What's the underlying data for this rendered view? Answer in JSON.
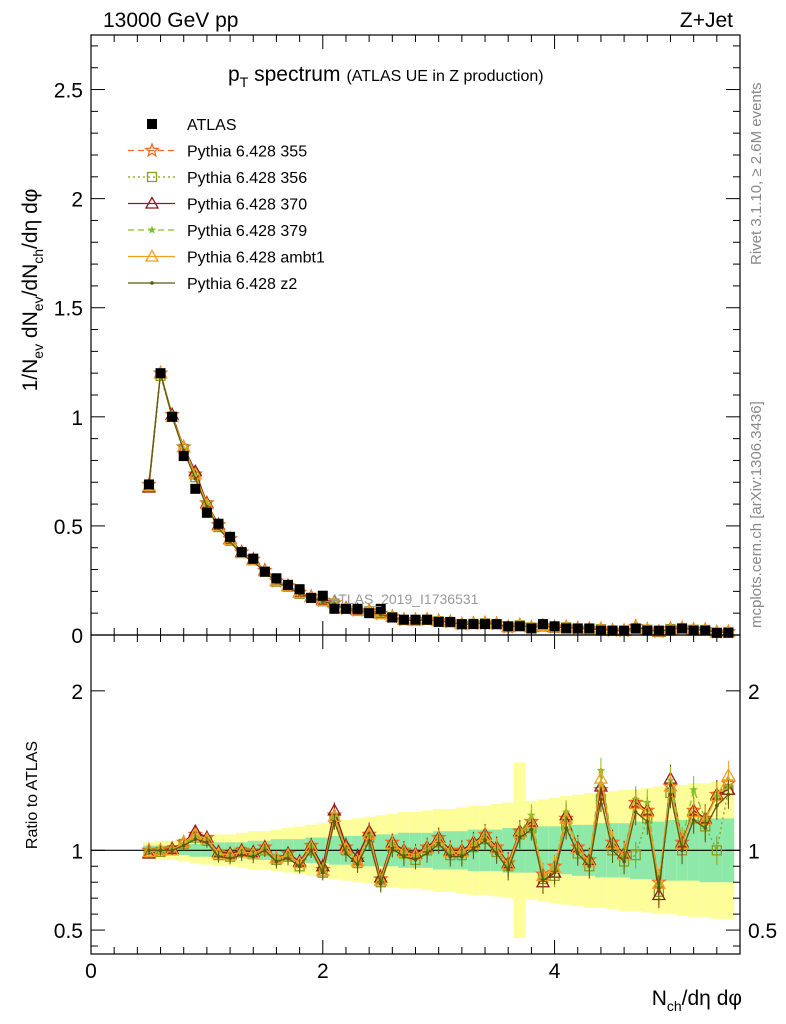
{
  "header": {
    "energy_label": "13000 GeV pp",
    "process_label": "Z+Jet"
  },
  "side_labels": {
    "rivet": "Rivet 3.1.10, ≥ 2.6M events",
    "mcplots": "mcplots.cern.ch [arXiv:1306.3436]"
  },
  "watermark": "ATLAS_2019_I1736531",
  "chart_data": [
    {
      "type": "line",
      "panel": "main",
      "title_main": "p",
      "title_sub": "T",
      "title_rest": " spectrum",
      "title_paren": "(ATLAS UE in Z production)",
      "ylabel": "1/N_ev dN_ev/dN_ch/dη dφ",
      "ylabel_parts": {
        "a": "1/N",
        "a_sub": "ev",
        "b": " dN",
        "b_sub": "ev",
        "c": "/dN",
        "c_sub": "ch",
        "d": "/dη dφ"
      },
      "xlim": [
        0,
        5.6
      ],
      "ylim": [
        0,
        2.75
      ],
      "yticks": [
        0,
        0.5,
        1,
        1.5,
        2,
        2.5
      ],
      "ytick_labels": [
        "0",
        "0.5",
        "1",
        "1.5",
        "2",
        "2.5"
      ],
      "legend_position": "top-left",
      "x": [
        0.5,
        0.6,
        0.7,
        0.8,
        0.9,
        1.0,
        1.1,
        1.2,
        1.3,
        1.4,
        1.5,
        1.6,
        1.7,
        1.8,
        1.9,
        2.0,
        2.1,
        2.2,
        2.3,
        2.4,
        2.5,
        2.6,
        2.7,
        2.8,
        2.9,
        3.0,
        3.1,
        3.2,
        3.3,
        3.4,
        3.5,
        3.6,
        3.7,
        3.8,
        3.9,
        4.0,
        4.1,
        4.2,
        4.3,
        4.4,
        4.5,
        4.6,
        4.7,
        4.8,
        4.9,
        5.0,
        5.1,
        5.2,
        5.3,
        5.4,
        5.5
      ],
      "data": [
        0.69,
        1.2,
        1.0,
        0.82,
        0.67,
        0.56,
        0.51,
        0.45,
        0.38,
        0.35,
        0.29,
        0.26,
        0.23,
        0.21,
        0.17,
        0.18,
        0.12,
        0.12,
        0.12,
        0.1,
        0.12,
        0.08,
        0.07,
        0.07,
        0.07,
        0.06,
        0.06,
        0.05,
        0.05,
        0.05,
        0.05,
        0.04,
        0.04,
        0.03,
        0.05,
        0.04,
        0.03,
        0.03,
        0.03,
        0.02,
        0.02,
        0.02,
        0.03,
        0.02,
        0.02,
        0.02,
        0.03,
        0.02,
        0.02,
        0.01,
        0.01
      ],
      "series": [
        {
          "name": "ATLAS",
          "color": "#000000",
          "marker": "square-filled",
          "line": "none"
        },
        {
          "name": "Pythia 6.428 355",
          "color": "#f26b21",
          "marker": "star-open",
          "line": "dashed"
        },
        {
          "name": "Pythia 6.428 356",
          "color": "#8b9c1e",
          "marker": "square-open",
          "line": "dotted"
        },
        {
          "name": "Pythia 6.428 370",
          "color": "#8b1a1a",
          "marker": "triangle-open",
          "line": "solid"
        },
        {
          "name": "Pythia 6.428 379",
          "color": "#7fbf2a",
          "marker": "star-small",
          "line": "dashed"
        },
        {
          "name": "Pythia 6.428 ambt1",
          "color": "#f0a020",
          "marker": "triangle-open",
          "line": "solid"
        },
        {
          "name": "Pythia 6.428 z2",
          "color": "#5a5a10",
          "marker": "dot",
          "line": "solid"
        }
      ],
      "mc_ratio": [
        [
          1.0,
          1.0,
          1.01,
          1.05,
          1.1,
          1.08,
          0.99,
          0.98,
          1.0,
          0.99,
          1.02,
          0.95,
          0.98,
          0.93,
          1.03,
          0.88,
          1.22,
          1.02,
          0.94,
          1.1,
          0.82,
          1.05,
          1.0,
          0.98,
          1.02,
          1.08,
          1.0,
          1.0,
          1.05,
          1.1,
          1.02,
          0.92,
          1.12,
          1.18,
          0.85,
          0.9,
          1.2,
          1.02,
          0.94,
          1.38,
          1.05,
          0.98,
          1.3,
          1.25,
          0.8,
          1.4,
          1.05,
          1.25,
          1.2,
          1.35,
          1.42
        ],
        [
          0.98,
          0.99,
          1.0,
          1.04,
          1.08,
          1.06,
          0.97,
          0.96,
          0.99,
          0.98,
          1.0,
          0.94,
          0.96,
          0.9,
          1.0,
          0.86,
          1.2,
          1.0,
          0.92,
          1.08,
          0.8,
          1.02,
          0.98,
          0.94,
          1.0,
          1.05,
          0.97,
          0.97,
          1.02,
          1.07,
          0.99,
          0.9,
          1.1,
          1.14,
          0.82,
          0.84,
          1.16,
          0.98,
          0.9,
          1.32,
          1.0,
          0.93,
          0.97,
          1.2,
          0.74,
          1.36,
          1.0,
          1.2,
          1.15,
          1.0,
          1.38
        ],
        [
          0.98,
          1.0,
          1.01,
          1.05,
          1.12,
          1.08,
          0.99,
          0.98,
          1.0,
          0.99,
          1.02,
          0.95,
          0.98,
          0.93,
          1.03,
          0.9,
          1.25,
          1.03,
          0.96,
          1.12,
          0.83,
          1.05,
          1.0,
          0.98,
          1.02,
          1.08,
          1.0,
          1.0,
          1.05,
          1.1,
          1.02,
          0.92,
          1.12,
          1.18,
          0.8,
          0.86,
          1.22,
          1.02,
          0.94,
          1.4,
          1.05,
          0.98,
          1.3,
          1.25,
          0.72,
          1.45,
          1.05,
          1.25,
          1.2,
          1.35,
          1.38
        ],
        [
          1.0,
          1.0,
          1.01,
          1.04,
          1.09,
          1.07,
          0.98,
          0.97,
          0.99,
          0.98,
          1.01,
          0.94,
          0.97,
          0.92,
          1.02,
          0.88,
          1.21,
          1.01,
          0.93,
          1.09,
          0.81,
          1.04,
          0.99,
          0.97,
          1.01,
          1.07,
          0.99,
          0.99,
          1.04,
          1.09,
          1.01,
          0.91,
          1.11,
          1.22,
          0.84,
          0.89,
          1.24,
          1.01,
          0.93,
          1.5,
          1.04,
          0.97,
          1.32,
          1.3,
          0.79,
          1.44,
          1.06,
          1.38,
          1.2,
          1.34,
          1.4
        ],
        [
          0.99,
          1.0,
          1.0,
          1.05,
          1.1,
          1.07,
          0.98,
          0.97,
          0.99,
          0.98,
          1.01,
          0.95,
          0.97,
          0.92,
          1.02,
          0.87,
          1.21,
          1.01,
          0.93,
          1.1,
          0.81,
          1.04,
          0.99,
          0.97,
          1.01,
          1.07,
          0.99,
          0.99,
          1.04,
          1.09,
          1.01,
          0.91,
          1.11,
          1.17,
          0.84,
          0.89,
          1.2,
          1.01,
          0.93,
          1.45,
          1.04,
          0.97,
          1.29,
          1.24,
          0.79,
          1.4,
          1.04,
          1.24,
          1.19,
          1.34,
          1.47
        ],
        [
          1.0,
          1.0,
          1.0,
          1.03,
          1.07,
          1.05,
          0.96,
          0.95,
          0.97,
          0.96,
          1.0,
          0.93,
          0.95,
          0.9,
          1.0,
          0.86,
          1.18,
          0.98,
          0.91,
          1.06,
          0.79,
          1.01,
          0.96,
          0.94,
          0.98,
          1.04,
          0.96,
          0.96,
          1.01,
          1.06,
          0.98,
          0.88,
          1.08,
          1.13,
          0.81,
          0.86,
          1.14,
          0.98,
          0.9,
          1.32,
          1.0,
          0.93,
          1.24,
          1.18,
          0.76,
          1.35,
          1.0,
          1.19,
          1.14,
          1.28,
          1.35
        ]
      ]
    },
    {
      "type": "line",
      "panel": "ratio",
      "ylabel": "Ratio to ATLAS",
      "xlabel": "N_ch/dη dφ",
      "xlabel_parts": {
        "a": "N",
        "a_sub": "ch",
        "b": "/dη dφ"
      },
      "xlim": [
        0,
        5.6
      ],
      "ylim": [
        0.35,
        2.35
      ],
      "xticks": [
        0,
        2,
        4
      ],
      "xtick_labels": [
        "0",
        "2",
        "4"
      ],
      "yticks": [
        0.5,
        1,
        2
      ],
      "ytick_labels": [
        "0.5",
        "1",
        "2"
      ],
      "stat_band": [
        0.03,
        0.03,
        0.03,
        0.03,
        0.04,
        0.04,
        0.05,
        0.05,
        0.05,
        0.06,
        0.06,
        0.07,
        0.07,
        0.07,
        0.08,
        0.08,
        0.09,
        0.09,
        0.09,
        0.1,
        0.1,
        0.1,
        0.11,
        0.11,
        0.11,
        0.12,
        0.12,
        0.12,
        0.13,
        0.13,
        0.13,
        0.14,
        0.14,
        0.14,
        0.15,
        0.15,
        0.15,
        0.16,
        0.16,
        0.17,
        0.17,
        0.17,
        0.18,
        0.18,
        0.18,
        0.19,
        0.19,
        0.19,
        0.2,
        0.2,
        0.2
      ],
      "total_band": [
        0.05,
        0.06,
        0.06,
        0.07,
        0.08,
        0.09,
        0.1,
        0.1,
        0.11,
        0.12,
        0.12,
        0.13,
        0.14,
        0.15,
        0.16,
        0.17,
        0.18,
        0.19,
        0.2,
        0.21,
        0.22,
        0.23,
        0.24,
        0.24,
        0.25,
        0.26,
        0.26,
        0.27,
        0.28,
        0.28,
        0.29,
        0.3,
        0.55,
        0.31,
        0.32,
        0.33,
        0.34,
        0.35,
        0.36,
        0.36,
        0.37,
        0.38,
        0.38,
        0.39,
        0.4,
        0.4,
        0.41,
        0.42,
        0.42,
        0.43,
        0.43
      ],
      "band_colors": {
        "stat": "#8ee8a8",
        "total": "#fdfd9a"
      }
    }
  ]
}
